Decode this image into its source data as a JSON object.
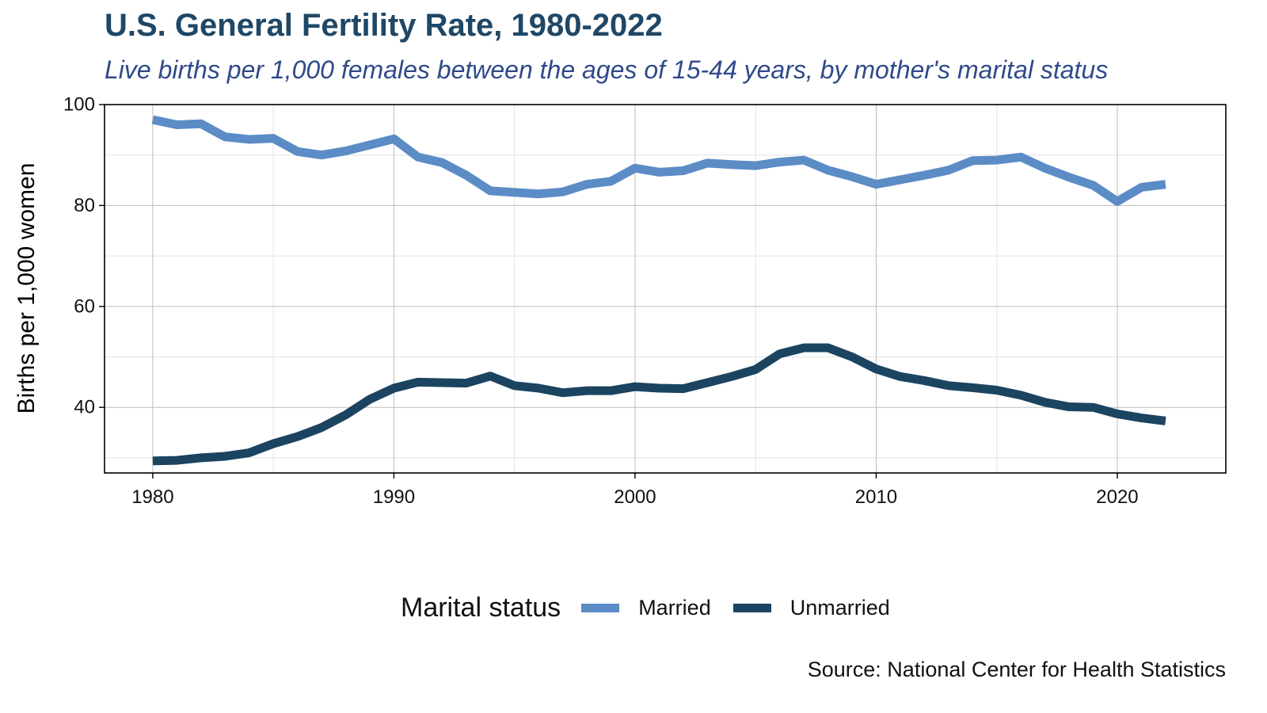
{
  "chart_data": {
    "type": "line",
    "title": "U.S. General Fertility Rate, 1980-2022",
    "subtitle": "Live births per 1,000 females between the ages of 15-44 years, by mother's marital status",
    "xlabel": "",
    "ylabel": "Births per 1,000 women",
    "source": "Source: National Center for Health Statistics",
    "legend_title": "Marital status",
    "legend_position": "bottom",
    "grid": true,
    "xlim": [
      1978,
      2024.5
    ],
    "ylim": [
      27,
      100
    ],
    "x_ticks": [
      1980,
      1990,
      2000,
      2010,
      2020
    ],
    "y_ticks": [
      40,
      60,
      80,
      100
    ],
    "x": [
      1980,
      1981,
      1982,
      1983,
      1984,
      1985,
      1986,
      1987,
      1988,
      1989,
      1990,
      1991,
      1992,
      1993,
      1994,
      1995,
      1996,
      1997,
      1998,
      1999,
      2000,
      2001,
      2002,
      2003,
      2004,
      2005,
      2006,
      2007,
      2008,
      2009,
      2010,
      2011,
      2012,
      2013,
      2014,
      2015,
      2016,
      2017,
      2018,
      2019,
      2020,
      2021,
      2022
    ],
    "series": [
      {
        "name": "Married",
        "color": "#5b8cc6",
        "values": [
          97.0,
          96.0,
          96.2,
          93.6,
          93.1,
          93.3,
          90.7,
          90.0,
          90.8,
          92.0,
          93.2,
          89.6,
          88.5,
          86.0,
          82.9,
          82.6,
          82.3,
          82.7,
          84.2,
          84.8,
          87.4,
          86.6,
          86.9,
          88.4,
          88.1,
          87.9,
          88.6,
          89.0,
          87.0,
          85.7,
          84.2,
          85.1,
          86.0,
          87.0,
          88.9,
          89.0,
          89.6,
          87.4,
          85.6,
          84.0,
          80.8,
          83.6,
          84.2
        ]
      },
      {
        "name": "Unmarried",
        "color": "#1b4461",
        "values": [
          29.4,
          29.5,
          30.0,
          30.3,
          31.0,
          32.8,
          34.2,
          36.0,
          38.5,
          41.6,
          43.8,
          45.0,
          44.9,
          44.8,
          46.2,
          44.3,
          43.8,
          42.9,
          43.3,
          43.3,
          44.1,
          43.8,
          43.7,
          44.9,
          46.1,
          47.5,
          50.6,
          51.8,
          51.8,
          50.0,
          47.6,
          46.1,
          45.3,
          44.3,
          43.9,
          43.4,
          42.4,
          41.0,
          40.1,
          40.0,
          38.7,
          37.9,
          37.3
        ]
      }
    ]
  }
}
